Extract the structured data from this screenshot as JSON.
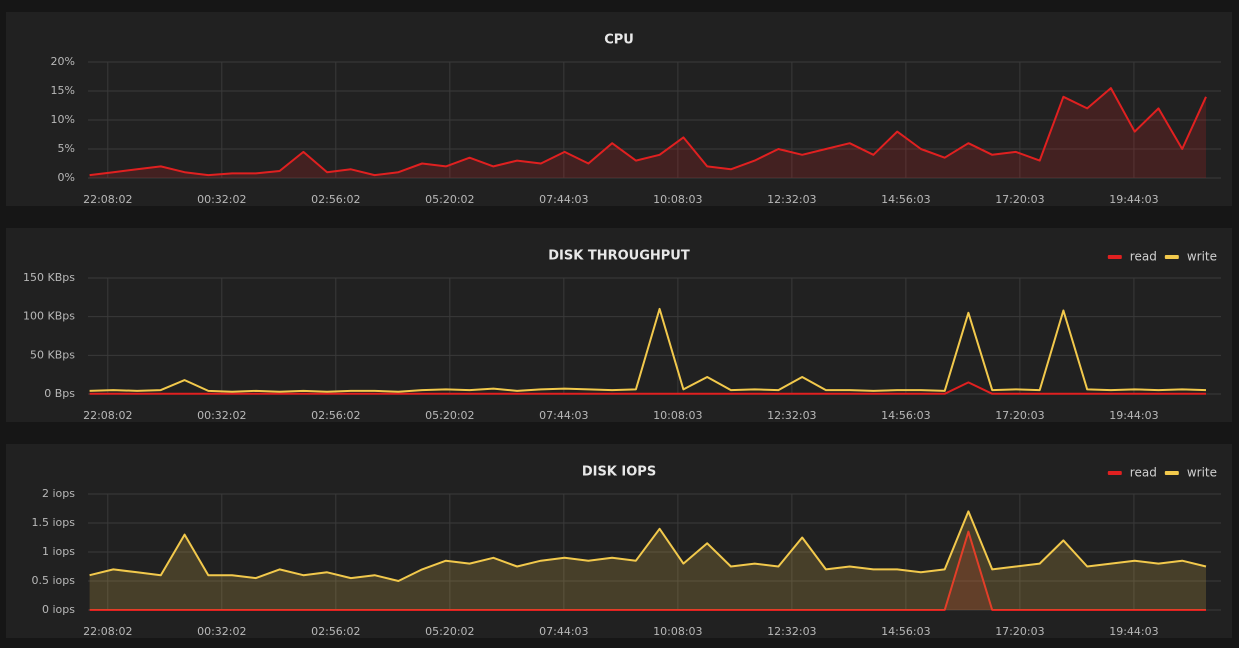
{
  "chart_data": [
    {
      "type": "line",
      "title": "CPU",
      "x": [
        1305,
        1335,
        1365,
        1395,
        1425,
        1455,
        1485,
        1515,
        1545,
        1575,
        1605,
        1635,
        1665,
        1695,
        1725,
        1755,
        1785,
        1815,
        1845,
        1875,
        1905,
        1935,
        1965,
        1995,
        2025,
        2055,
        2085,
        2115,
        2145,
        2175,
        2205,
        2235,
        2265,
        2295,
        2325,
        2355,
        2385,
        2415,
        2445,
        2475,
        2505,
        2535,
        2565,
        2595,
        2625,
        2655,
        2685,
        2715
      ],
      "values": [
        0.5,
        1,
        1.5,
        2,
        1,
        0.5,
        0.8,
        0.8,
        1.2,
        4.5,
        1,
        1.5,
        0.5,
        1,
        2.5,
        2,
        3.5,
        2,
        3,
        2.5,
        4.5,
        2.5,
        6,
        3,
        4,
        7,
        2,
        1.5,
        3,
        5,
        4,
        5,
        6,
        4,
        8,
        5,
        3.5,
        6,
        4,
        4.5,
        3,
        14,
        12,
        15.5,
        8,
        12,
        5,
        14
      ],
      "color": "#e02020",
      "fill": true,
      "xlim": [
        1303,
        2734
      ],
      "xticks": [
        {
          "value": 1328,
          "label": "22:08:02"
        },
        {
          "value": 1472,
          "label": "00:32:02"
        },
        {
          "value": 1616,
          "label": "02:56:02"
        },
        {
          "value": 1760,
          "label": "05:20:02"
        },
        {
          "value": 1904,
          "label": "07:44:03"
        },
        {
          "value": 2048,
          "label": "10:08:03"
        },
        {
          "value": 2192,
          "label": "12:32:03"
        },
        {
          "value": 2336,
          "label": "14:56:03"
        },
        {
          "value": 2480,
          "label": "17:20:03"
        },
        {
          "value": 2624,
          "label": "19:44:03"
        }
      ],
      "ylim": [
        0,
        20
      ],
      "yticks": [
        {
          "value": 0,
          "label": "0%"
        },
        {
          "value": 5,
          "label": "5%"
        },
        {
          "value": 10,
          "label": "10%"
        },
        {
          "value": 15,
          "label": "15%"
        },
        {
          "value": 20,
          "label": "20%"
        }
      ],
      "grid": true
    },
    {
      "type": "line",
      "title": "DISK THROUGHPUT",
      "x": [
        1305,
        1335,
        1365,
        1395,
        1425,
        1455,
        1485,
        1515,
        1545,
        1575,
        1605,
        1635,
        1665,
        1695,
        1725,
        1755,
        1785,
        1815,
        1845,
        1875,
        1905,
        1935,
        1965,
        1995,
        2025,
        2055,
        2085,
        2115,
        2145,
        2175,
        2205,
        2235,
        2265,
        2295,
        2325,
        2355,
        2385,
        2415,
        2445,
        2475,
        2505,
        2535,
        2565,
        2595,
        2625,
        2655,
        2685,
        2715
      ],
      "series": [
        {
          "name": "read",
          "color": "#e02020",
          "values": [
            0.3,
            0.3,
            0.3,
            0.3,
            0.3,
            0.3,
            0.3,
            0.3,
            0.3,
            0.3,
            0.3,
            0.3,
            0.3,
            0.3,
            0.3,
            0.3,
            0.3,
            0.3,
            0.3,
            0.3,
            0.3,
            0.3,
            0.3,
            0.3,
            0.3,
            0.3,
            0.3,
            0.3,
            0.3,
            0.3,
            0.3,
            0.3,
            0.3,
            0.3,
            0.3,
            0.3,
            0.3,
            15,
            0.3,
            0.3,
            0.3,
            0.3,
            0.3,
            0.3,
            0.3,
            0.3,
            0.3,
            0.3
          ]
        },
        {
          "name": "write",
          "color": "#f2c94c",
          "values": [
            4,
            5,
            4,
            5,
            18,
            4,
            3,
            4,
            3,
            4,
            3,
            4,
            4,
            3,
            5,
            6,
            5,
            7,
            4,
            6,
            7,
            6,
            5,
            6,
            110,
            6,
            22,
            5,
            6,
            5,
            22,
            5,
            5,
            4,
            5,
            5,
            4,
            105,
            5,
            6,
            5,
            108,
            6,
            5,
            6,
            5,
            6,
            5
          ]
        }
      ],
      "fill": false,
      "legend": "top-right",
      "xlim": [
        1303,
        2734
      ],
      "xticks": [
        {
          "value": 1328,
          "label": "22:08:02"
        },
        {
          "value": 1472,
          "label": "00:32:02"
        },
        {
          "value": 1616,
          "label": "02:56:02"
        },
        {
          "value": 1760,
          "label": "05:20:02"
        },
        {
          "value": 1904,
          "label": "07:44:03"
        },
        {
          "value": 2048,
          "label": "10:08:03"
        },
        {
          "value": 2192,
          "label": "12:32:03"
        },
        {
          "value": 2336,
          "label": "14:56:03"
        },
        {
          "value": 2480,
          "label": "17:20:03"
        },
        {
          "value": 2624,
          "label": "19:44:03"
        }
      ],
      "ylim": [
        0,
        150
      ],
      "yticks": [
        {
          "value": 0,
          "label": "0 Bps"
        },
        {
          "value": 50,
          "label": "50 KBps"
        },
        {
          "value": 100,
          "label": "100 KBps"
        },
        {
          "value": 150,
          "label": "150 KBps"
        }
      ],
      "grid": true
    },
    {
      "type": "line",
      "title": "DISK IOPS",
      "x": [
        1305,
        1335,
        1365,
        1395,
        1425,
        1455,
        1485,
        1515,
        1545,
        1575,
        1605,
        1635,
        1665,
        1695,
        1725,
        1755,
        1785,
        1815,
        1845,
        1875,
        1905,
        1935,
        1965,
        1995,
        2025,
        2055,
        2085,
        2115,
        2145,
        2175,
        2205,
        2235,
        2265,
        2295,
        2325,
        2355,
        2385,
        2415,
        2445,
        2475,
        2505,
        2535,
        2565,
        2595,
        2625,
        2655,
        2685,
        2715
      ],
      "series": [
        {
          "name": "read",
          "color": "#e02020",
          "values": [
            0,
            0,
            0,
            0,
            0,
            0,
            0,
            0,
            0,
            0,
            0,
            0,
            0,
            0,
            0,
            0,
            0,
            0,
            0,
            0,
            0,
            0,
            0,
            0,
            0,
            0,
            0,
            0,
            0,
            0,
            0,
            0,
            0,
            0,
            0,
            0,
            0,
            1.35,
            0,
            0,
            0,
            0,
            0,
            0,
            0,
            0,
            0,
            0
          ]
        },
        {
          "name": "write",
          "color": "#f2c94c",
          "values": [
            0.6,
            0.7,
            0.65,
            0.6,
            1.3,
            0.6,
            0.6,
            0.55,
            0.7,
            0.6,
            0.65,
            0.55,
            0.6,
            0.5,
            0.7,
            0.85,
            0.8,
            0.9,
            0.75,
            0.85,
            0.9,
            0.85,
            0.9,
            0.85,
            1.4,
            0.8,
            1.15,
            0.75,
            0.8,
            0.75,
            1.25,
            0.7,
            0.75,
            0.7,
            0.7,
            0.65,
            0.7,
            1.7,
            0.7,
            0.75,
            0.8,
            1.2,
            0.75,
            0.8,
            0.85,
            0.8,
            0.85,
            0.75
          ]
        }
      ],
      "fill": true,
      "legend": "top-right",
      "xlim": [
        1303,
        2734
      ],
      "xticks": [
        {
          "value": 1328,
          "label": "22:08:02"
        },
        {
          "value": 1472,
          "label": "00:32:02"
        },
        {
          "value": 1616,
          "label": "02:56:02"
        },
        {
          "value": 1760,
          "label": "05:20:02"
        },
        {
          "value": 1904,
          "label": "07:44:03"
        },
        {
          "value": 2048,
          "label": "10:08:03"
        },
        {
          "value": 2192,
          "label": "12:32:03"
        },
        {
          "value": 2336,
          "label": "14:56:03"
        },
        {
          "value": 2480,
          "label": "17:20:03"
        },
        {
          "value": 2624,
          "label": "19:44:03"
        }
      ],
      "ylim": [
        0,
        2
      ],
      "yticks": [
        {
          "value": 0,
          "label": "0 iops"
        },
        {
          "value": 0.5,
          "label": "0.5 iops"
        },
        {
          "value": 1,
          "label": "1 iops"
        },
        {
          "value": 1.5,
          "label": "1.5 iops"
        },
        {
          "value": 2,
          "label": "2 iops"
        }
      ],
      "grid": true
    }
  ]
}
